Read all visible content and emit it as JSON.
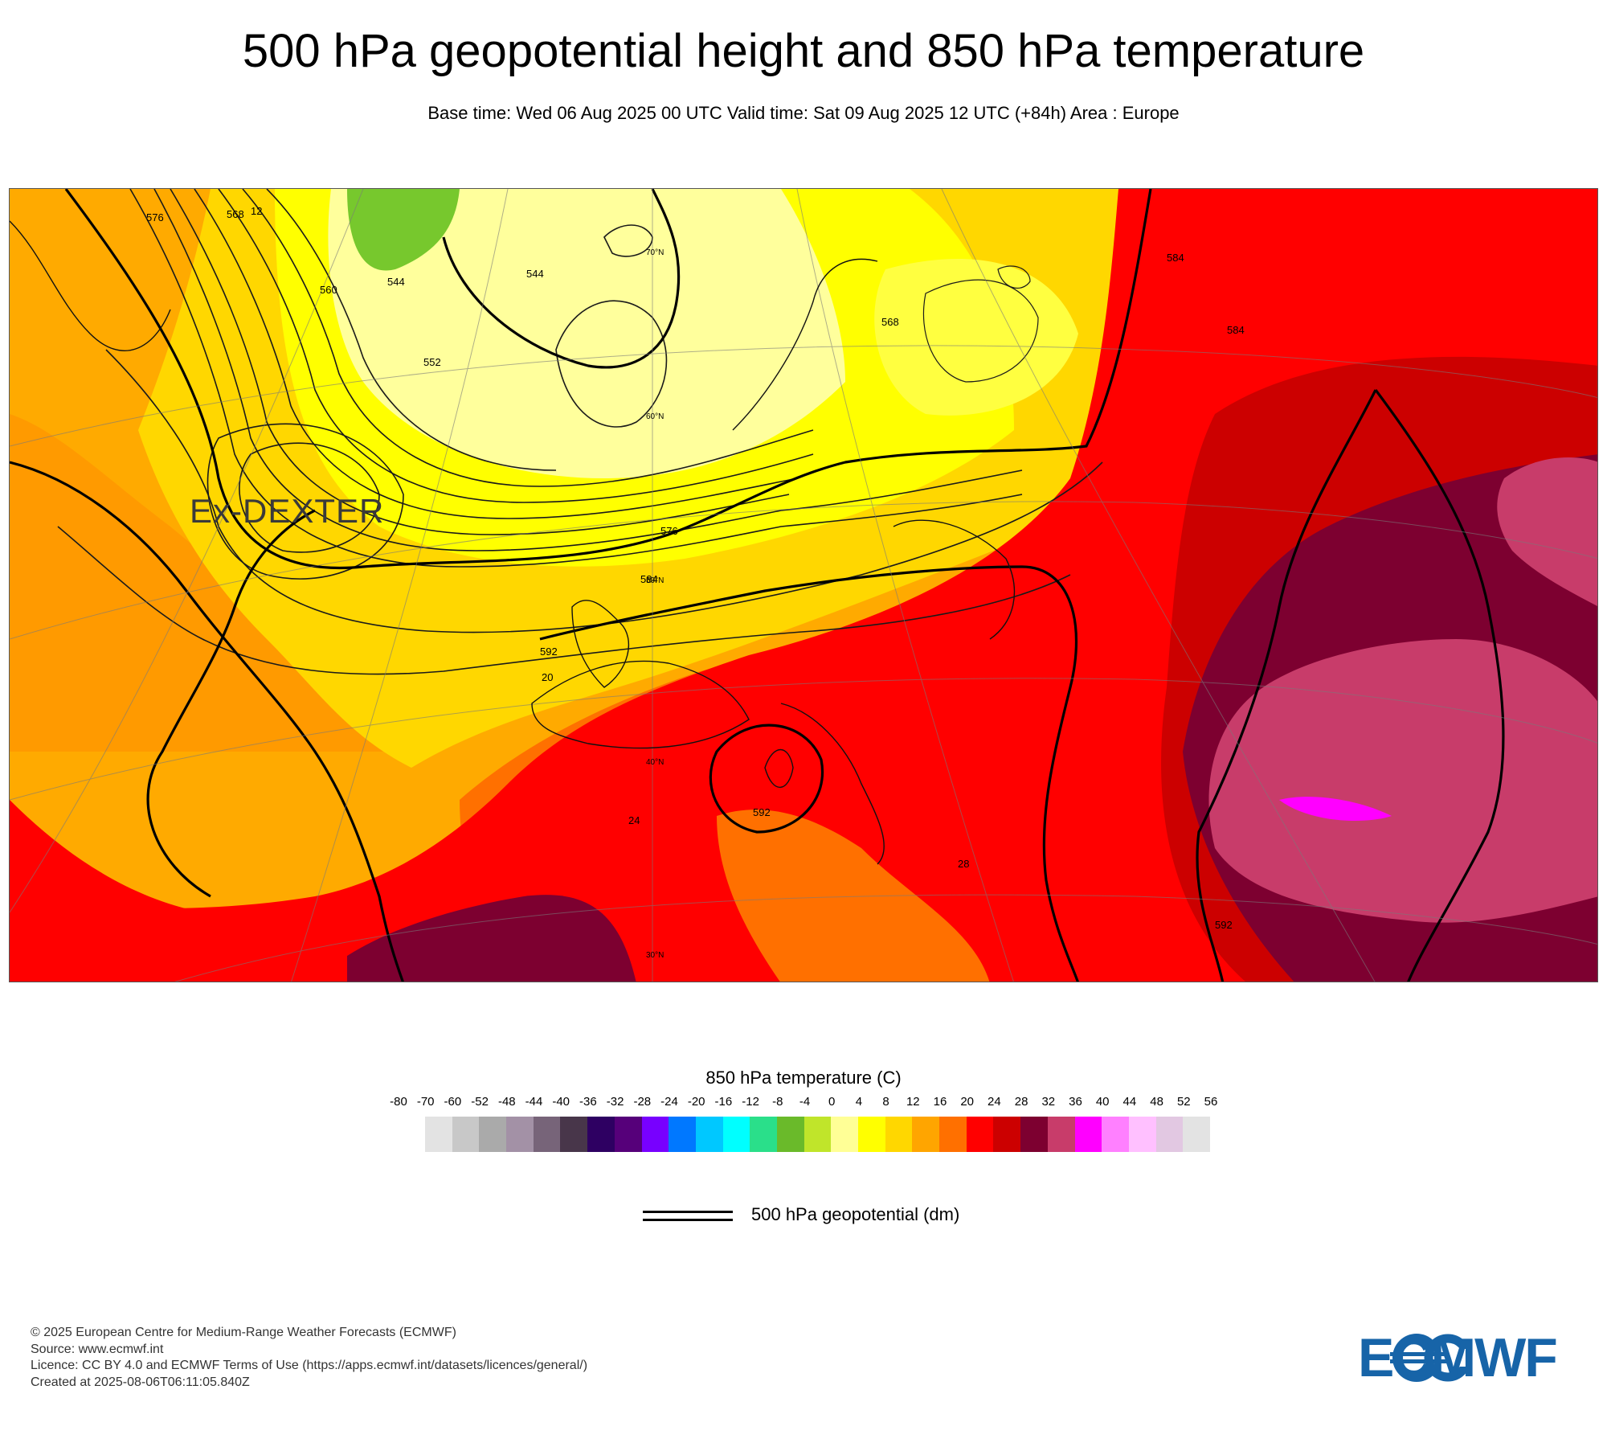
{
  "header": {
    "title": "500 hPa geopotential height and 850 hPa temperature",
    "subtitle": "Base time: Wed 06 Aug 2025 00 UTC Valid time: Sat 09 Aug 2025 12 UTC (+84h) Area : Europe"
  },
  "map": {
    "annotation": "Ex-DEXTER",
    "contour_labels": [
      "576",
      "568",
      "12",
      "560",
      "544",
      "552",
      "544",
      "568",
      "584",
      "576",
      "584",
      "592",
      "592",
      "20",
      "24",
      "28",
      "584",
      "592"
    ],
    "lat_labels": [
      "70°N",
      "60°N",
      "50°N",
      "40°N",
      "30°N"
    ],
    "colors": {
      "pale_yellow": "#ffff9c",
      "yellow": "#ffff00",
      "gold": "#ffd700",
      "orange": "#ffaa00",
      "dark_orange": "#ff7000",
      "red": "#ff0000",
      "dark_red": "#cc0000",
      "maroon": "#800030",
      "pink": "#cc3d6a",
      "magenta": "#ff00ff",
      "green": "#77c82d"
    }
  },
  "colorbar": {
    "title": "850 hPa temperature (C)",
    "ticks": [
      "-80",
      "-70",
      "-60",
      "-52",
      "-48",
      "-44",
      "-40",
      "-36",
      "-32",
      "-28",
      "-24",
      "-20",
      "-16",
      "-12",
      "-8",
      "-4",
      "0",
      "4",
      "8",
      "12",
      "16",
      "20",
      "24",
      "28",
      "32",
      "36",
      "40",
      "44",
      "48",
      "52",
      "56"
    ],
    "colors": [
      "#e3e3e3",
      "#c8c8c8",
      "#aaaaaa",
      "#a391a6",
      "#776479",
      "#48364a",
      "#2e0062",
      "#56007a",
      "#7800ff",
      "#0078ff",
      "#00c8ff",
      "#00ffff",
      "#2adf8a",
      "#6aba2a",
      "#c0e52a",
      "#ffff96",
      "#ffff00",
      "#ffd700",
      "#ffa500",
      "#ff7000",
      "#ff0000",
      "#cc0000",
      "#7d0030",
      "#c83c6a",
      "#ff00ff",
      "#ff80ff",
      "#ffc0ff",
      "#e2c8e2",
      "#e3e3e3"
    ]
  },
  "legend": {
    "line_label": "500 hPa geopotential (dm)"
  },
  "credits": {
    "line1": "© 2025 European Centre for Medium-Range Weather Forecasts (ECMWF)",
    "line2": "Source: www.ecmwf.int",
    "line3": "Licence: CC BY 4.0 and ECMWF Terms of Use (https://apps.ecmwf.int/datasets/licences/general/)",
    "line4": "Created at 2025-08-06T06:11:05.840Z"
  },
  "logo": {
    "text": "ECMWF",
    "color": "#1764a8"
  }
}
